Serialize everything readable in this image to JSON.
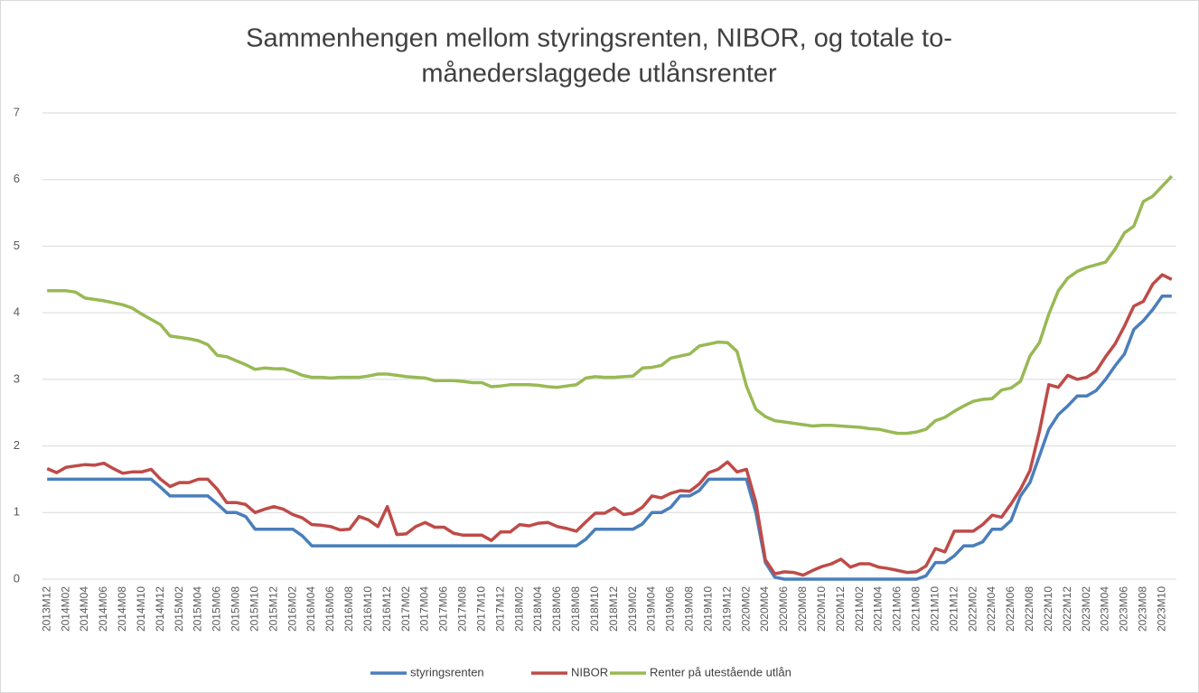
{
  "chart_data": {
    "type": "line",
    "title": [
      "Sammenhengen mellom styringsrenten, NIBOR, og totale to-",
      "månederslaggede utlånsrenter"
    ],
    "categories": [
      "2013M12",
      null,
      "2014M02",
      null,
      "2014M04",
      null,
      "2014M06",
      null,
      "2014M08",
      null,
      "2014M10",
      null,
      "2014M12",
      null,
      "2015M02",
      null,
      "2015M04",
      null,
      "2015M06",
      null,
      "2015M08",
      null,
      "2015M10",
      null,
      "2015M12",
      null,
      "2016M02",
      null,
      "2016M04",
      null,
      "2016M06",
      null,
      "2016M08",
      null,
      "2016M10",
      null,
      "2016M12",
      null,
      "2017M02",
      null,
      "2017M04",
      null,
      "2017M06",
      null,
      "2017M08",
      null,
      "2017M10",
      null,
      "2017M12",
      null,
      "2018M02",
      null,
      "2018M04",
      null,
      "2018M06",
      null,
      "2018M08",
      null,
      "2018M10",
      null,
      "2018M12",
      null,
      "2019M02",
      null,
      "2019M04",
      null,
      "2019M06",
      null,
      "2019M08",
      null,
      "2019M10",
      null,
      "2019M12",
      null,
      "2020M02",
      null,
      "2020M04",
      null,
      "2020M06",
      null,
      "2020M08",
      null,
      "2020M10",
      null,
      "2020M12",
      null,
      "2021M02",
      null,
      "2021M04",
      null,
      "2021M06",
      null,
      "2021M08",
      null,
      "2021M10",
      null,
      "2021M12",
      null,
      "2022M02",
      null,
      "2022M04",
      null,
      "2022M06",
      null,
      "2022M08",
      null,
      "2022M10",
      null,
      "2022M12",
      null,
      "2023M02",
      null,
      "2023M04",
      null,
      "2023M06",
      null,
      "2023M08",
      null,
      "2023M10",
      null
    ],
    "series": [
      {
        "name": "styringsrenten",
        "color": "#4a7ebb",
        "values": [
          1.5,
          1.5,
          1.5,
          1.5,
          1.5,
          1.5,
          1.5,
          1.5,
          1.5,
          1.5,
          1.5,
          1.5,
          1.38,
          1.25,
          1.25,
          1.25,
          1.25,
          1.25,
          1.13,
          1.0,
          1.0,
          0.94,
          0.75,
          0.75,
          0.75,
          0.75,
          0.75,
          0.65,
          0.5,
          0.5,
          0.5,
          0.5,
          0.5,
          0.5,
          0.5,
          0.5,
          0.5,
          0.5,
          0.5,
          0.5,
          0.5,
          0.5,
          0.5,
          0.5,
          0.5,
          0.5,
          0.5,
          0.5,
          0.5,
          0.5,
          0.5,
          0.5,
          0.5,
          0.5,
          0.5,
          0.5,
          0.5,
          0.6,
          0.75,
          0.75,
          0.75,
          0.75,
          0.75,
          0.83,
          1.0,
          1.0,
          1.08,
          1.25,
          1.25,
          1.33,
          1.5,
          1.5,
          1.5,
          1.5,
          1.5,
          1.0,
          0.25,
          0.03,
          0,
          0,
          0,
          0,
          0,
          0,
          0,
          0,
          0,
          0,
          0,
          0,
          0,
          0,
          0,
          0.05,
          0.25,
          0.25,
          0.35,
          0.5,
          0.5,
          0.56,
          0.75,
          0.75,
          0.88,
          1.25,
          1.45,
          1.85,
          2.25,
          2.47,
          2.6,
          2.75,
          2.75,
          2.83,
          3.0,
          3.2,
          3.38,
          3.75,
          3.88,
          4.05,
          4.25,
          4.25
        ]
      },
      {
        "name": "NIBOR",
        "color": "#be4b48",
        "values": [
          1.66,
          1.6,
          1.68,
          1.7,
          1.72,
          1.71,
          1.74,
          1.66,
          1.59,
          1.61,
          1.61,
          1.65,
          1.5,
          1.39,
          1.45,
          1.45,
          1.5,
          1.5,
          1.35,
          1.15,
          1.15,
          1.12,
          1.0,
          1.05,
          1.09,
          1.05,
          0.97,
          0.92,
          0.82,
          0.81,
          0.79,
          0.74,
          0.75,
          0.94,
          0.89,
          0.79,
          1.09,
          0.67,
          0.68,
          0.79,
          0.85,
          0.78,
          0.78,
          0.69,
          0.66,
          0.66,
          0.66,
          0.58,
          0.71,
          0.71,
          0.82,
          0.8,
          0.84,
          0.85,
          0.79,
          0.76,
          0.72,
          0.86,
          0.99,
          0.99,
          1.07,
          0.97,
          0.99,
          1.08,
          1.25,
          1.22,
          1.29,
          1.33,
          1.32,
          1.43,
          1.6,
          1.65,
          1.76,
          1.61,
          1.65,
          1.15,
          0.29,
          0.08,
          0.11,
          0.1,
          0.06,
          0.13,
          0.19,
          0.23,
          0.3,
          0.18,
          0.23,
          0.23,
          0.18,
          0.16,
          0.13,
          0.1,
          0.11,
          0.2,
          0.46,
          0.41,
          0.72,
          0.72,
          0.72,
          0.82,
          0.96,
          0.93,
          1.13,
          1.35,
          1.63,
          2.22,
          2.92,
          2.88,
          3.06,
          3.0,
          3.03,
          3.12,
          3.34,
          3.53,
          3.8,
          4.1,
          4.17,
          4.43,
          4.57,
          4.5
        ]
      },
      {
        "name": "Renter på utestående utlån",
        "color": "#98b954",
        "values": [
          4.33,
          4.33,
          4.33,
          4.31,
          4.22,
          4.2,
          4.18,
          4.15,
          4.12,
          4.07,
          3.98,
          3.9,
          3.82,
          3.65,
          3.63,
          3.61,
          3.58,
          3.52,
          3.36,
          3.34,
          3.28,
          3.22,
          3.15,
          3.17,
          3.16,
          3.16,
          3.12,
          3.06,
          3.03,
          3.03,
          3.02,
          3.03,
          3.03,
          3.03,
          3.05,
          3.08,
          3.08,
          3.06,
          3.04,
          3.03,
          3.02,
          2.98,
          2.98,
          2.98,
          2.97,
          2.95,
          2.95,
          2.89,
          2.9,
          2.92,
          2.92,
          2.92,
          2.91,
          2.89,
          2.88,
          2.9,
          2.92,
          3.02,
          3.04,
          3.03,
          3.03,
          3.04,
          3.05,
          3.17,
          3.18,
          3.21,
          3.32,
          3.35,
          3.38,
          3.5,
          3.53,
          3.56,
          3.55,
          3.42,
          2.9,
          2.55,
          2.44,
          2.38,
          2.36,
          2.34,
          2.32,
          2.3,
          2.31,
          2.31,
          2.3,
          2.29,
          2.28,
          2.26,
          2.25,
          2.22,
          2.19,
          2.19,
          2.21,
          2.25,
          2.38,
          2.43,
          2.52,
          2.6,
          2.67,
          2.7,
          2.71,
          2.84,
          2.87,
          2.97,
          3.35,
          3.55,
          3.98,
          4.33,
          4.52,
          4.62,
          4.68,
          4.72,
          4.76,
          4.95,
          5.2,
          5.3,
          5.67,
          5.75,
          5.9,
          6.05
        ]
      }
    ],
    "ylim": [
      0,
      7
    ],
    "yticks": [
      0,
      1,
      2,
      3,
      4,
      5,
      6,
      7
    ],
    "grid": true,
    "legend": "bottom"
  }
}
